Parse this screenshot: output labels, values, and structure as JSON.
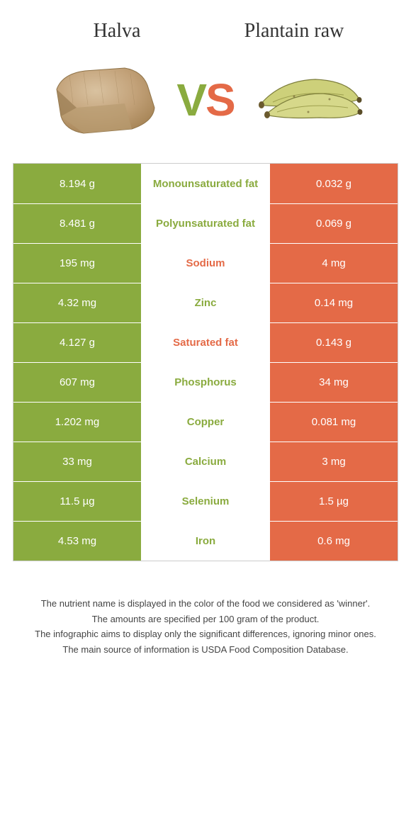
{
  "colors": {
    "left_bg": "#8aab3f",
    "right_bg": "#e46a47",
    "nutrient_left_color": "#8aab3f",
    "nutrient_right_color": "#e46a47",
    "page_bg": "#ffffff",
    "text": "#333333",
    "border": "#cccccc"
  },
  "header": {
    "left_title": "Halva",
    "right_title": "Plantain raw",
    "vs_v": "V",
    "vs_s": "S"
  },
  "table": {
    "type": "table",
    "rows": [
      {
        "left": "8.194 g",
        "nutrient": "Monounsaturated fat",
        "right": "0.032 g",
        "winner": "left"
      },
      {
        "left": "8.481 g",
        "nutrient": "Polyunsaturated fat",
        "right": "0.069 g",
        "winner": "left"
      },
      {
        "left": "195 mg",
        "nutrient": "Sodium",
        "right": "4 mg",
        "winner": "right"
      },
      {
        "left": "4.32 mg",
        "nutrient": "Zinc",
        "right": "0.14 mg",
        "winner": "left"
      },
      {
        "left": "4.127 g",
        "nutrient": "Saturated fat",
        "right": "0.143 g",
        "winner": "right"
      },
      {
        "left": "607 mg",
        "nutrient": "Phosphorus",
        "right": "34 mg",
        "winner": "left"
      },
      {
        "left": "1.202 mg",
        "nutrient": "Copper",
        "right": "0.081 mg",
        "winner": "left"
      },
      {
        "left": "33 mg",
        "nutrient": "Calcium",
        "right": "3 mg",
        "winner": "left"
      },
      {
        "left": "11.5 µg",
        "nutrient": "Selenium",
        "right": "1.5 µg",
        "winner": "left"
      },
      {
        "left": "4.53 mg",
        "nutrient": "Iron",
        "right": "0.6 mg",
        "winner": "left"
      }
    ]
  },
  "footnotes": [
    "The nutrient name is displayed in the color of the food we considered as 'winner'.",
    "The amounts are specified per 100 gram of the product.",
    "The infographic aims to display only the significant differences, ignoring minor ones.",
    "The main source of information is USDA Food Composition Database."
  ]
}
